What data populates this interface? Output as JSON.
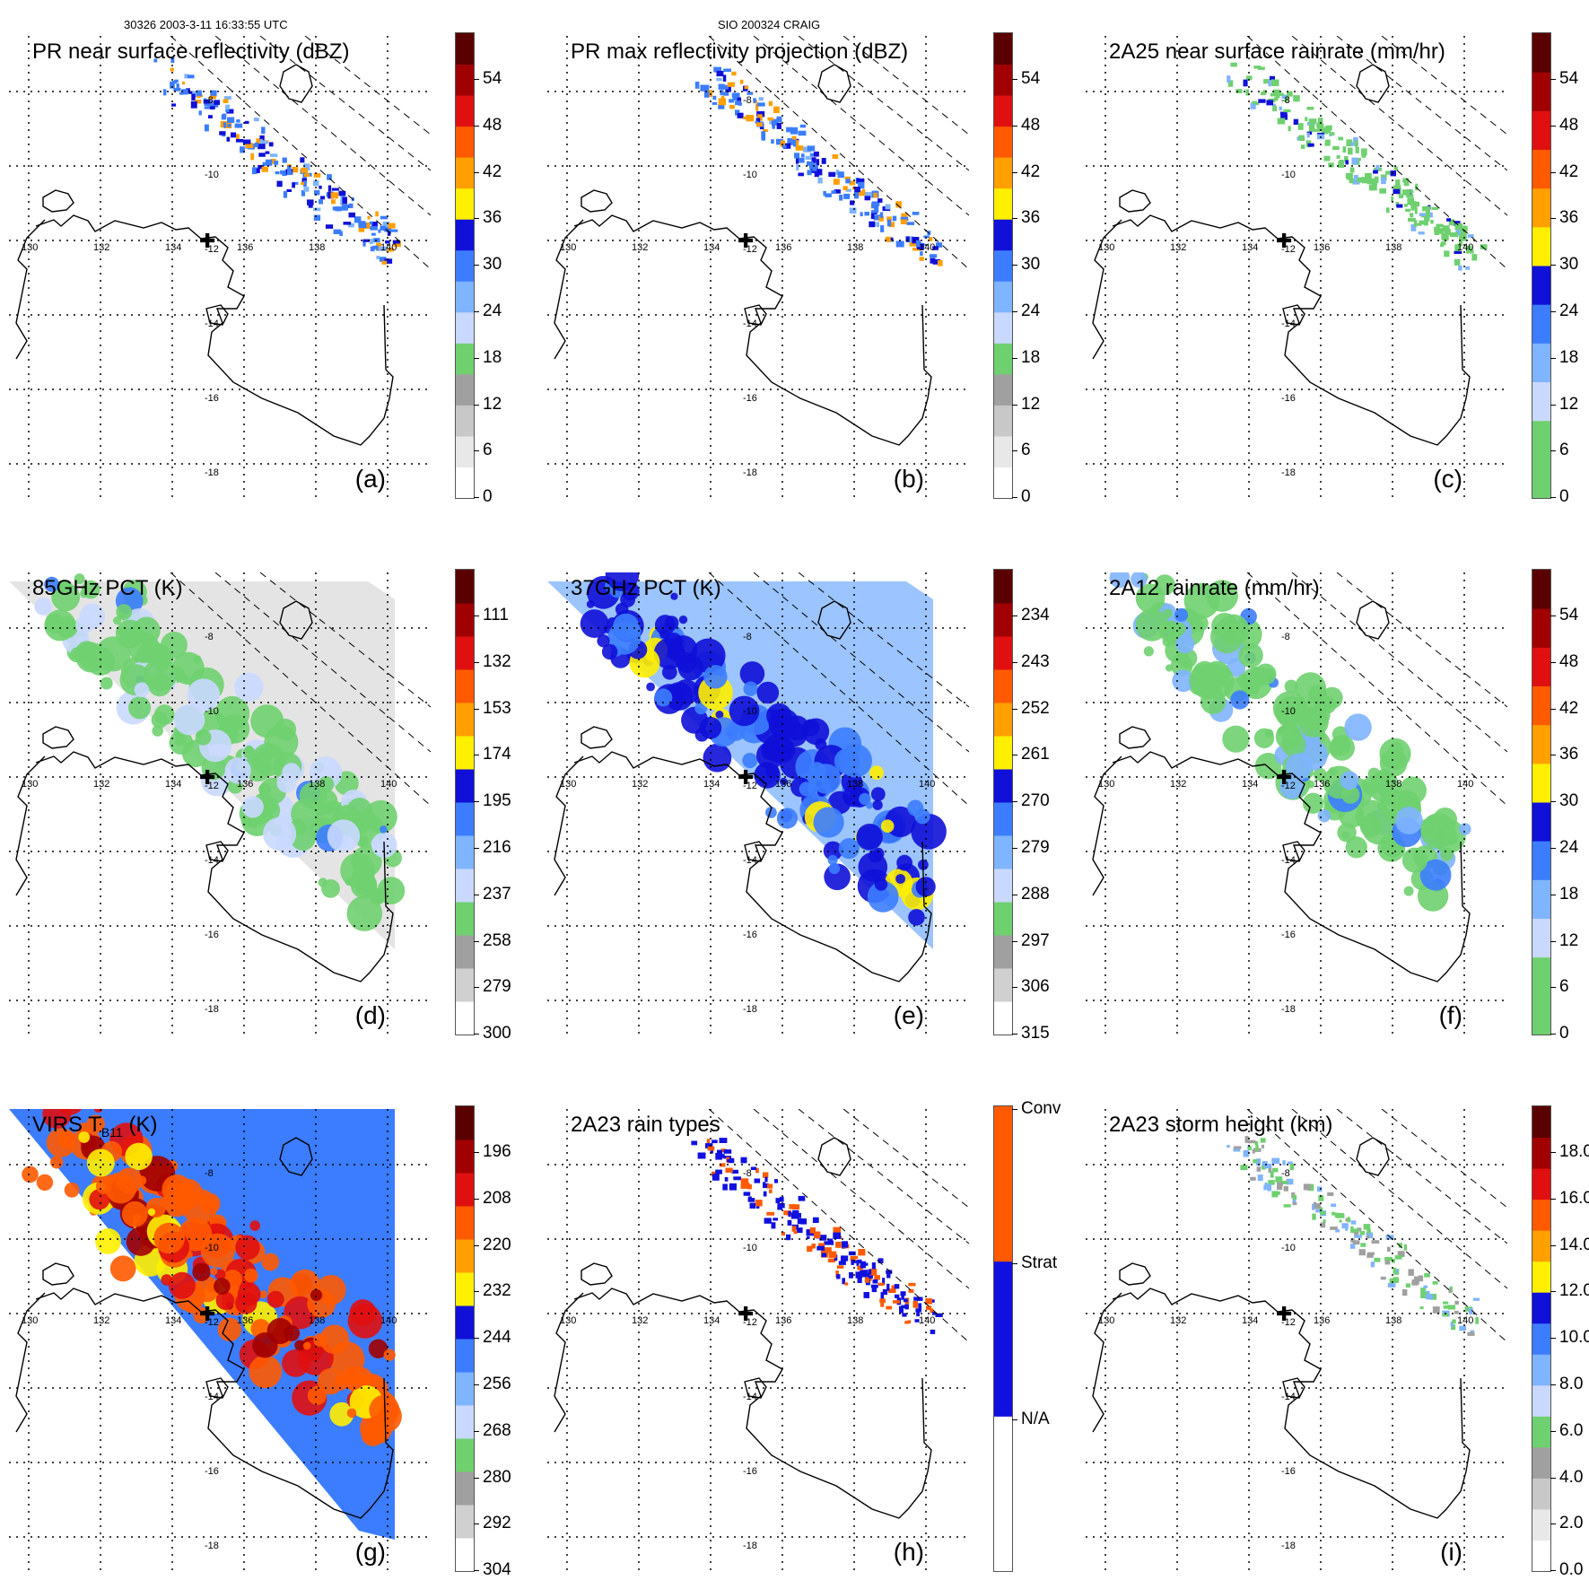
{
  "header": {
    "left": "30326 2003-3-11 16:33:55 UTC",
    "middle": "SIO 200324 CRAIG"
  },
  "lon_labels": [
    "130",
    "132",
    "134",
    "136",
    "138",
    "140"
  ],
  "lat_labels": [
    "-8",
    "-10",
    "-12",
    "-14",
    "-16",
    "-18"
  ],
  "panels": [
    {
      "title": "PR near surface reflectivity (dBZ)",
      "label": "(a)",
      "swath": "pr",
      "field": "pr_refl",
      "scale": {
        "ticks": [
          "54",
          "48",
          "42",
          "36",
          "30",
          "24",
          "18",
          "12",
          "6",
          "0"
        ],
        "colors": [
          "#ffffff",
          "#e8e8e8",
          "#c8c8c8",
          "#a0a0a0",
          "#6fd06f",
          "#c9d8ff",
          "#7fb4ff",
          "#3c7dff",
          "#1010d8",
          "#ffef00",
          "#ff9f00",
          "#ff5a00",
          "#e01010",
          "#a00000",
          "#5a0000"
        ]
      }
    },
    {
      "title": "PR max reflectivity projection (dBZ)",
      "label": "(b)",
      "swath": "pr",
      "field": "pr_max",
      "scale": {
        "ticks": [
          "54",
          "48",
          "42",
          "36",
          "30",
          "24",
          "18",
          "12",
          "6",
          "0"
        ],
        "colors": [
          "#ffffff",
          "#e8e8e8",
          "#c8c8c8",
          "#a0a0a0",
          "#6fd06f",
          "#c9d8ff",
          "#7fb4ff",
          "#3c7dff",
          "#1010d8",
          "#ffef00",
          "#ff9f00",
          "#ff5a00",
          "#e01010",
          "#a00000",
          "#5a0000"
        ]
      }
    },
    {
      "title": "2A25 near surface rainrate (mm/hr)",
      "label": "(c)",
      "swath": "pr",
      "field": "rain25",
      "scale": {
        "ticks": [
          "54",
          "48",
          "42",
          "36",
          "30",
          "24",
          "18",
          "12",
          "6",
          "0"
        ],
        "colors": [
          "#6fd06f",
          "#6fd06f",
          "#c9d8ff",
          "#7fb4ff",
          "#3c7dff",
          "#1010d8",
          "#ffef00",
          "#ff9f00",
          "#ff5a00",
          "#e01010",
          "#a00000",
          "#5a0000"
        ]
      }
    },
    {
      "title": "85GHz PCT (K)",
      "label": "(d)",
      "swath": "tmi",
      "field": "pct85",
      "scale": {
        "ticks": [
          "111",
          "132",
          "153",
          "174",
          "195",
          "216",
          "237",
          "258",
          "279",
          "300"
        ],
        "colors": [
          "#ffffff",
          "#d0d0d0",
          "#a0a0a0",
          "#6fd06f",
          "#c9d8ff",
          "#7fb4ff",
          "#3c7dff",
          "#1010d8",
          "#ffef00",
          "#ff9f00",
          "#ff5a00",
          "#e01010",
          "#a00000",
          "#5a0000"
        ]
      }
    },
    {
      "title": "37GHz PCT (K)",
      "label": "(e)",
      "swath": "tmi",
      "field": "pct37",
      "scale": {
        "ticks": [
          "234",
          "243",
          "252",
          "261",
          "270",
          "279",
          "288",
          "297",
          "306",
          "315"
        ],
        "colors": [
          "#ffffff",
          "#d0d0d0",
          "#a0a0a0",
          "#6fd06f",
          "#c9d8ff",
          "#7fb4ff",
          "#3c7dff",
          "#1010d8",
          "#ffef00",
          "#ff9f00",
          "#ff5a00",
          "#e01010",
          "#a00000",
          "#5a0000"
        ]
      }
    },
    {
      "title": "2A12 rainrate (mm/hr)",
      "label": "(f)",
      "swath": "tmi",
      "field": "rain12",
      "scale": {
        "ticks": [
          "54",
          "48",
          "42",
          "36",
          "30",
          "24",
          "18",
          "12",
          "6",
          "0"
        ],
        "colors": [
          "#6fd06f",
          "#6fd06f",
          "#c9d8ff",
          "#7fb4ff",
          "#3c7dff",
          "#1010d8",
          "#ffef00",
          "#ff9f00",
          "#ff5a00",
          "#e01010",
          "#a00000",
          "#5a0000"
        ]
      }
    },
    {
      "title": "VIRS T",
      "title_sub": "B11",
      "title_tail": " (K)",
      "label": "(g)",
      "swath": "virs",
      "field": "virs",
      "scale": {
        "ticks": [
          "196",
          "208",
          "220",
          "232",
          "244",
          "256",
          "268",
          "280",
          "292",
          "304"
        ],
        "colors": [
          "#ffffff",
          "#d0d0d0",
          "#a0a0a0",
          "#6fd06f",
          "#c9d8ff",
          "#7fb4ff",
          "#3c7dff",
          "#1010d8",
          "#ffef00",
          "#ff9f00",
          "#ff5a00",
          "#e01010",
          "#a00000",
          "#5a0000"
        ]
      }
    },
    {
      "title": "2A23 rain types",
      "label": "(h)",
      "swath": "pr",
      "field": "types",
      "scale": {
        "ticks": [
          "Conv",
          "Strat",
          "N/A"
        ],
        "categorical": true,
        "colors": [
          "#ffffff",
          "#1010e0",
          "#ff5a00"
        ]
      }
    },
    {
      "title": "2A23 storm height (km)",
      "label": "(i)",
      "swath": "pr",
      "field": "height",
      "scale": {
        "ticks": [
          "18.0",
          "16.0",
          "14.0",
          "12.0",
          "10.0",
          "8.0",
          "6.0",
          "4.0",
          "2.0",
          "0.0"
        ],
        "colors": [
          "#ffffff",
          "#e8e8e8",
          "#c8c8c8",
          "#a0a0a0",
          "#6fd06f",
          "#c9d8ff",
          "#7fb4ff",
          "#3c7dff",
          "#1010d8",
          "#ffef00",
          "#ff9f00",
          "#ff5a00",
          "#e01010",
          "#a00000",
          "#5a0000"
        ]
      }
    }
  ]
}
